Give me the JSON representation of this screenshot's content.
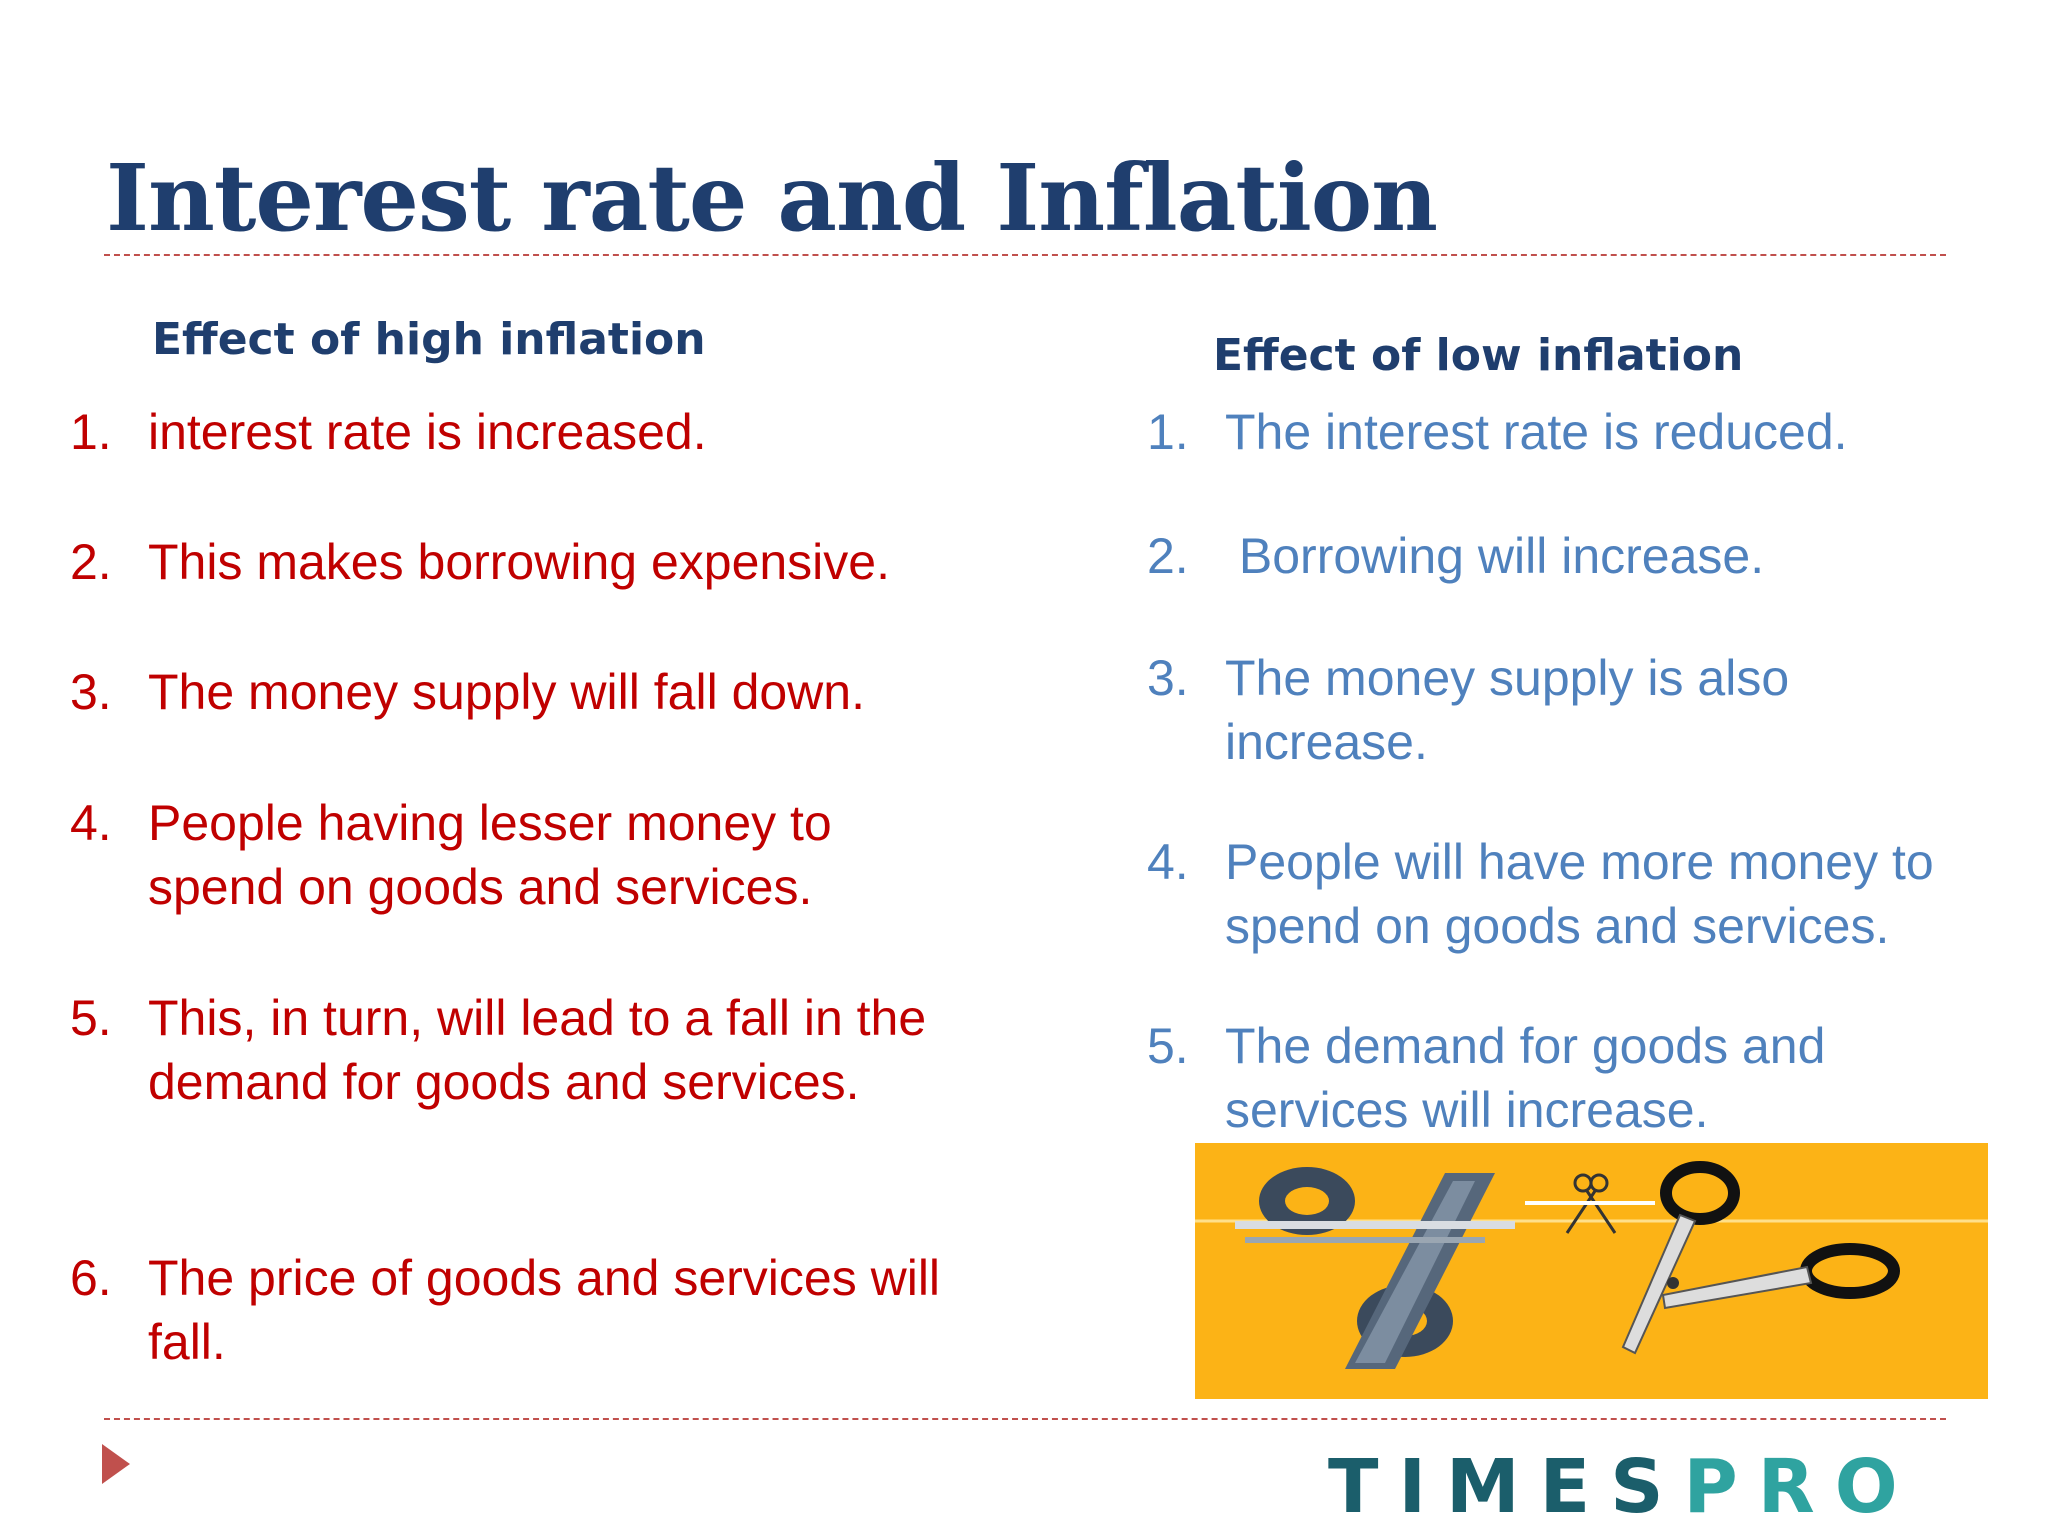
{
  "title": "Interest rate and Inflation",
  "left_column": {
    "heading": "Effect of high inflation",
    "color": "#c00000",
    "items": [
      {
        "num": "1.",
        "text": "interest rate is increased."
      },
      {
        "num": "2.",
        "text": "This makes borrowing expensive."
      },
      {
        "num": "3.",
        "text": "The money supply will fall down."
      },
      {
        "num": "4.",
        "text": "People having lesser money to spend on goods and services."
      },
      {
        "num": "5.",
        "text": "This, in turn, will lead to a fall in the demand for goods and services."
      },
      {
        "num": "6.",
        "text": "The price of goods and services will fall."
      }
    ]
  },
  "right_column": {
    "heading": "Effect of low inflation",
    "color": "#4f81bd",
    "items": [
      {
        "num": "1.",
        "text": "The interest rate is reduced."
      },
      {
        "num": "2.",
        "text": " Borrowing will increase."
      },
      {
        "num": "3.",
        "text": "The money supply is also increase."
      },
      {
        "num": "4.",
        "text": "People will have more money to spend on goods and services."
      },
      {
        "num": "5.",
        "text": "The demand for goods and services will increase."
      }
    ]
  },
  "illustration": {
    "icon": "percent-scissors-icon",
    "background": "#fcb316"
  },
  "footer": {
    "logo_part1": "TIMES",
    "logo_part2": "PRO",
    "nav_icon": "play-arrow-icon"
  }
}
